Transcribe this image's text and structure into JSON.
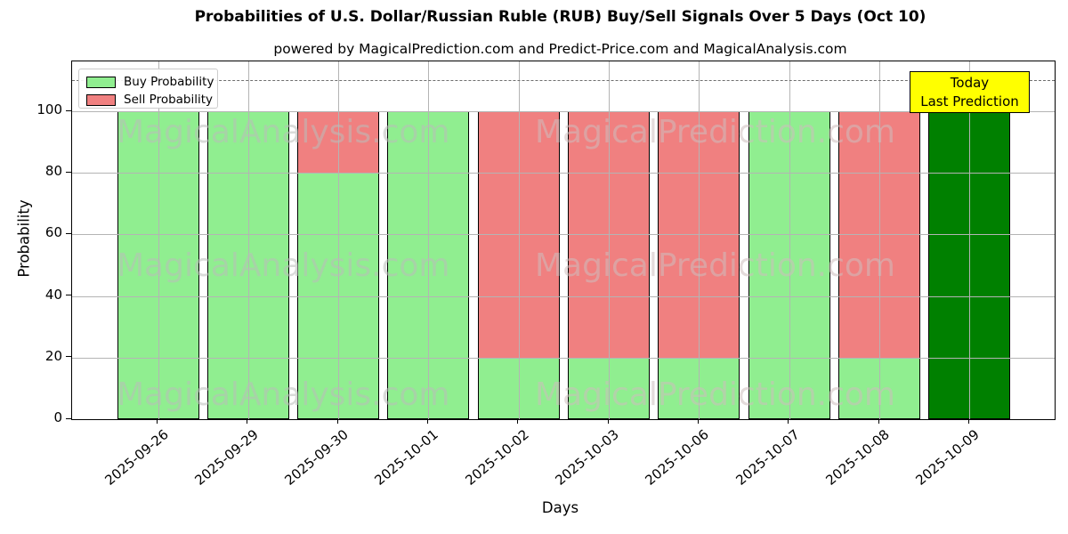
{
  "title": "Probabilities of U.S. Dollar/Russian Ruble (RUB) Buy/Sell Signals Over 5 Days (Oct 10)",
  "subtitle": "powered by MagicalPrediction.com and Predict-Price.com and MagicalAnalysis.com",
  "legend": {
    "items": [
      {
        "label": "Buy Probability",
        "color": "#90EE90"
      },
      {
        "label": "Sell Probability",
        "color": "#F08080"
      }
    ]
  },
  "annotation": {
    "line1": "Today",
    "line2": "Last Prediction"
  },
  "axes": {
    "x_label": "Days",
    "y_label": "Probability",
    "y_ticks": [
      0,
      20,
      40,
      60,
      80,
      100
    ]
  },
  "watermarks": {
    "left_text": "MagicalAnalysis.com",
    "right_text": "MagicalPrediction.com"
  },
  "colors": {
    "buy": "#90EE90",
    "sell": "#F08080",
    "today_bar": "#008000",
    "bar_edge": "#000000",
    "grid": "#B4B4B4",
    "dashed_line": "#6E6E6E",
    "annotation_bg": "#FFFF00"
  },
  "chart_data": {
    "type": "bar",
    "stacked": true,
    "title": "Probabilities of U.S. Dollar/Russian Ruble (RUB) Buy/Sell Signals Over 5 Days (Oct 10)",
    "xlabel": "Days",
    "ylabel": "Probability",
    "categories": [
      "2025-09-26",
      "2025-09-29",
      "2025-09-30",
      "2025-10-01",
      "2025-10-02",
      "2025-10-03",
      "2025-10-06",
      "2025-10-07",
      "2025-10-08",
      "2025-10-09"
    ],
    "series": [
      {
        "name": "Buy Probability",
        "color": "#90EE90",
        "values": [
          100,
          100,
          80,
          100,
          20,
          20,
          20,
          100,
          20,
          100
        ]
      },
      {
        "name": "Sell Probability",
        "color": "#F08080",
        "values": [
          0,
          0,
          20,
          0,
          80,
          80,
          80,
          0,
          80,
          0
        ]
      }
    ],
    "today_bar_index": 9,
    "today_bar_color": "#008000",
    "ylim": [
      0,
      116
    ],
    "y_ticks": [
      0,
      20,
      40,
      60,
      80,
      100
    ],
    "dashed_line_y": 110,
    "grid": true,
    "legend_position": "upper left",
    "annotation": "Today / Last Prediction on last bar"
  }
}
